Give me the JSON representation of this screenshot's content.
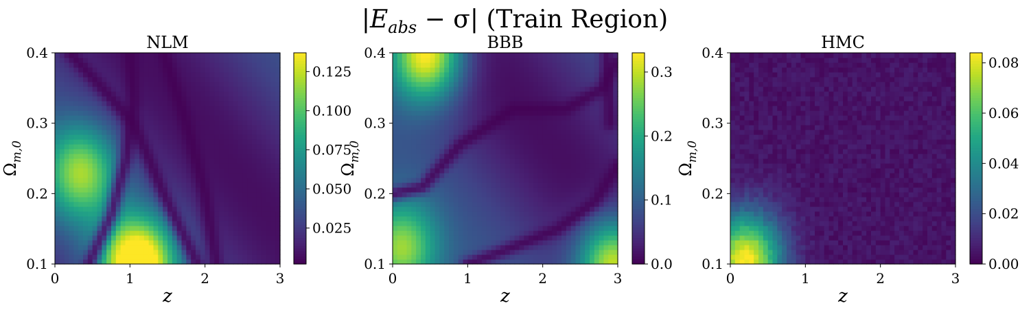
{
  "figure": {
    "title": "|E_abs − σ| (Train Region)",
    "title_parts": {
      "bar": "|",
      "E": "E",
      "abs": "abs",
      "minus": " − σ| ",
      "rest": "(Train Region)"
    }
  },
  "chart_data": [
    {
      "type": "heatmap",
      "title": "NLM",
      "xlabel": "z",
      "ylabel": "Ω_{m,0}",
      "ylabel_parts": {
        "omega": "Ω",
        "sub": "m,0"
      },
      "xlim": [
        0,
        3
      ],
      "ylim": [
        0.1,
        0.4
      ],
      "xticks": [
        "0",
        "1",
        "2",
        "3"
      ],
      "yticks": [
        "0.1",
        "0.2",
        "0.3",
        "0.4"
      ],
      "colormap": "viridis",
      "clim": [
        0.002,
        0.137
      ],
      "cbar_ticks": [
        0.025,
        0.05,
        0.075,
        0.1,
        0.125
      ],
      "cbar_tick_labels": [
        "0.025",
        "0.050",
        "0.075",
        "0.100",
        "0.125"
      ],
      "features": [
        {
          "kind": "peak",
          "z": 0.35,
          "omega": 0.23,
          "value": 0.085
        },
        {
          "kind": "peak",
          "z": 1.1,
          "omega": 0.1,
          "value": 0.137
        },
        {
          "kind": "trough_curve",
          "points": [
            [
              0.45,
              0.1
            ],
            [
              0.75,
              0.17
            ],
            [
              0.95,
              0.25
            ],
            [
              1.05,
              0.33
            ],
            [
              1.0,
              0.4
            ]
          ]
        },
        {
          "kind": "trough_curve",
          "points": [
            [
              0.2,
              0.4
            ],
            [
              0.55,
              0.36
            ],
            [
              1.05,
              0.3
            ],
            [
              1.45,
              0.2
            ],
            [
              1.9,
              0.1
            ]
          ]
        },
        {
          "kind": "trough_curve",
          "points": [
            [
              1.45,
              0.4
            ],
            [
              1.75,
              0.3
            ],
            [
              2.0,
              0.2
            ],
            [
              2.15,
              0.1
            ]
          ]
        }
      ]
    },
    {
      "type": "heatmap",
      "title": "BBB",
      "xlabel": "z",
      "ylabel": "Ω_{m,0}",
      "ylabel_parts": {
        "omega": "Ω",
        "sub": "m,0"
      },
      "xlim": [
        0,
        3
      ],
      "ylim": [
        0.1,
        0.4
      ],
      "xticks": [
        "0",
        "1",
        "2",
        "3"
      ],
      "yticks": [
        "0.1",
        "0.2",
        "0.3",
        "0.4"
      ],
      "colormap": "viridis",
      "clim": [
        0,
        0.33
      ],
      "cbar_ticks": [
        0,
        0.1,
        0.2,
        0.3
      ],
      "cbar_tick_labels": [
        "0.0",
        "0.1",
        "0.2",
        "0.3"
      ],
      "features": [
        {
          "kind": "peak",
          "z": 0.45,
          "omega": 0.4,
          "value": 0.3
        },
        {
          "kind": "peak",
          "z": 2.95,
          "omega": 0.1,
          "value": 0.28
        },
        {
          "kind": "peak",
          "z": 0.1,
          "omega": 0.12,
          "value": 0.22
        },
        {
          "kind": "trough_curve",
          "points": [
            [
              0.0,
              0.2
            ],
            [
              0.4,
              0.21
            ],
            [
              0.9,
              0.27
            ],
            [
              1.6,
              0.32
            ],
            [
              2.3,
              0.32
            ],
            [
              2.8,
              0.35
            ],
            [
              3.0,
              0.39
            ]
          ]
        },
        {
          "kind": "trough_curve",
          "points": [
            [
              1.0,
              0.1
            ],
            [
              1.5,
              0.12
            ],
            [
              2.2,
              0.15
            ],
            [
              2.7,
              0.19
            ],
            [
              3.0,
              0.24
            ]
          ]
        },
        {
          "kind": "trough_curve",
          "points": [
            [
              2.85,
              0.4
            ],
            [
              2.9,
              0.3
            ]
          ]
        }
      ]
    },
    {
      "type": "heatmap",
      "title": "HMC",
      "xlabel": "z",
      "ylabel": "Ω_{m,0}",
      "ylabel_parts": {
        "omega": "Ω",
        "sub": "m,0"
      },
      "xlim": [
        0,
        3
      ],
      "ylim": [
        0.1,
        0.4
      ],
      "xticks": [
        "0",
        "1",
        "2",
        "3"
      ],
      "yticks": [
        "0.1",
        "0.2",
        "0.3",
        "0.4"
      ],
      "colormap": "viridis",
      "clim": [
        0,
        0.084
      ],
      "cbar_ticks": [
        0,
        0.02,
        0.04,
        0.06,
        0.08
      ],
      "cbar_tick_labels": [
        "0.00",
        "0.02",
        "0.04",
        "0.06",
        "0.08"
      ],
      "features": [
        {
          "kind": "peak",
          "z": 0.2,
          "omega": 0.105,
          "value": 0.08
        },
        {
          "kind": "noise",
          "amplitude": 0.006
        }
      ]
    }
  ]
}
